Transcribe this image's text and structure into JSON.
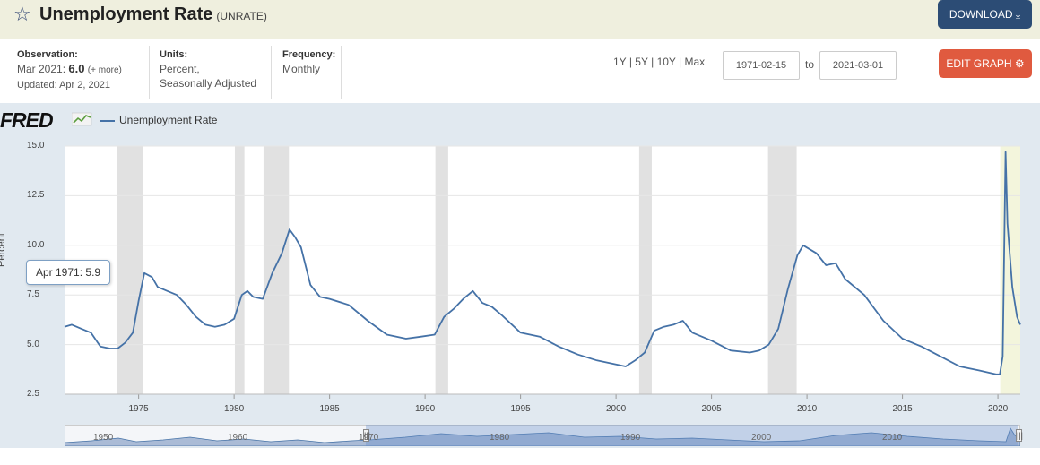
{
  "header": {
    "title": "Unemployment Rate",
    "series_code": "(UNRATE)",
    "download_label": "DOWNLOAD",
    "star_icon": "star-outline-icon",
    "download_icon": "download-icon"
  },
  "meta": {
    "observation_label": "Observation:",
    "observation_date": "Mar 2021:",
    "observation_value": "6.0",
    "observation_more": "(+ more)",
    "updated": "Updated: Apr 2, 2021",
    "units_label": "Units:",
    "units_line1": "Percent,",
    "units_line2": "Seasonally Adjusted",
    "frequency_label": "Frequency:",
    "frequency_value": "Monthly"
  },
  "controls": {
    "range_1y": "1Y",
    "range_5y": "5Y",
    "range_10y": "10Y",
    "range_max": "Max",
    "range_sep": "|",
    "start_date": "1971-02-15",
    "to_label": "to",
    "end_date": "2021-03-01",
    "edit_label": "EDIT GRAPH",
    "edit_icon": "gear-icon"
  },
  "logo": "FRED",
  "tooltip": {
    "label": "Apr 1971:",
    "value": "5.9"
  },
  "navigator": {
    "years": [
      "1950",
      "1960",
      "1970",
      "1980",
      "1990",
      "2000",
      "2010"
    ],
    "handle_glyph": "|||"
  },
  "chart_data": {
    "type": "line",
    "title": "",
    "legend": [
      "Unemployment Rate"
    ],
    "ylabel": "Percent",
    "xlabel": "",
    "xlim": [
      1971.12,
      2021.17
    ],
    "ylim": [
      2.5,
      15.0
    ],
    "yticks": [
      2.5,
      5.0,
      7.5,
      10.0,
      12.5,
      15.0
    ],
    "ytick_labels": [
      "2.5",
      "5.0",
      "7.5",
      "10.0",
      "12.5",
      "15.0"
    ],
    "xticks": [
      1975,
      1980,
      1985,
      1990,
      1995,
      2000,
      2005,
      2010,
      2015,
      2020
    ],
    "grid": "horizontal",
    "legend_position": "top-left",
    "line_color": "#4572a7",
    "recession_color": "#e1e1e1",
    "recessions": [
      [
        1973.87,
        1975.21
      ],
      [
        1980.04,
        1980.54
      ],
      [
        1981.54,
        1982.87
      ],
      [
        1990.54,
        1991.21
      ],
      [
        2001.21,
        2001.87
      ],
      [
        2007.96,
        2009.46
      ],
      [
        2020.12,
        2021.17
      ]
    ],
    "series": [
      {
        "name": "Unemployment Rate",
        "x": [
          1971.12,
          1971.5,
          1972.0,
          1972.5,
          1973.0,
          1973.5,
          1973.9,
          1974.3,
          1974.7,
          1975.0,
          1975.3,
          1975.7,
          1976.0,
          1976.5,
          1977.0,
          1977.5,
          1978.0,
          1978.5,
          1979.0,
          1979.5,
          1980.0,
          1980.4,
          1980.7,
          1981.0,
          1981.5,
          1982.0,
          1982.5,
          1982.9,
          1983.2,
          1983.5,
          1984.0,
          1984.5,
          1985.0,
          1986.0,
          1987.0,
          1988.0,
          1989.0,
          1989.8,
          1990.5,
          1991.0,
          1991.5,
          1992.0,
          1992.5,
          1993.0,
          1993.5,
          1994.0,
          1995.0,
          1996.0,
          1997.0,
          1998.0,
          1999.0,
          2000.0,
          2000.5,
          2001.0,
          2001.5,
          2002.0,
          2002.5,
          2003.0,
          2003.5,
          2004.0,
          2005.0,
          2006.0,
          2007.0,
          2007.5,
          2008.0,
          2008.5,
          2009.0,
          2009.5,
          2009.8,
          2010.5,
          2011.0,
          2011.5,
          2012.0,
          2013.0,
          2014.0,
          2015.0,
          2016.0,
          2017.0,
          2018.0,
          2019.0,
          2019.9,
          2020.1,
          2020.25,
          2020.4,
          2020.5,
          2020.75,
          2021.0,
          2021.17
        ],
        "values": [
          5.9,
          6.0,
          5.8,
          5.6,
          4.9,
          4.8,
          4.8,
          5.1,
          5.6,
          7.2,
          8.6,
          8.4,
          7.9,
          7.7,
          7.5,
          7.0,
          6.4,
          6.0,
          5.9,
          6.0,
          6.3,
          7.5,
          7.7,
          7.4,
          7.3,
          8.6,
          9.6,
          10.8,
          10.4,
          9.9,
          8.0,
          7.4,
          7.3,
          7.0,
          6.2,
          5.5,
          5.3,
          5.4,
          5.5,
          6.4,
          6.8,
          7.3,
          7.7,
          7.1,
          6.9,
          6.5,
          5.6,
          5.4,
          4.9,
          4.5,
          4.2,
          4.0,
          3.9,
          4.2,
          4.6,
          5.7,
          5.9,
          6.0,
          6.2,
          5.6,
          5.2,
          4.7,
          4.6,
          4.7,
          5.0,
          5.8,
          7.8,
          9.5,
          10.0,
          9.6,
          9.0,
          9.1,
          8.3,
          7.5,
          6.2,
          5.3,
          4.9,
          4.4,
          3.9,
          3.7,
          3.5,
          3.5,
          4.4,
          14.7,
          11.1,
          7.9,
          6.4,
          6.0
        ]
      }
    ]
  }
}
